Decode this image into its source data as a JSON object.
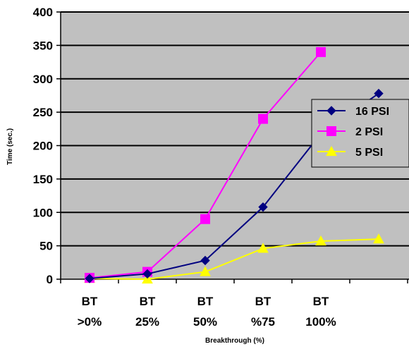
{
  "chart_data": {
    "type": "line",
    "title": "",
    "xlabel": "Breakthrough (%)",
    "ylabel": "Time (sec.)",
    "ylim": [
      0,
      400
    ],
    "yticks": [
      0,
      50,
      100,
      150,
      200,
      250,
      300,
      350,
      400
    ],
    "grid": "horizontal",
    "legend_position": "right",
    "categories": [
      [
        "BT",
        ">0%"
      ],
      [
        "BT",
        "25%"
      ],
      [
        "BT",
        "50%"
      ],
      [
        "BT",
        "%75"
      ],
      [
        "BT",
        "100%"
      ],
      [
        "",
        ""
      ]
    ],
    "series": [
      {
        "name": "16 PSI",
        "color": "#000080",
        "marker": "diamond",
        "values": [
          1,
          8,
          28,
          108,
          218,
          278
        ]
      },
      {
        "name": "2 PSI",
        "color": "#FF00FF",
        "marker": "square",
        "values": [
          2,
          11,
          90,
          240,
          340,
          null
        ]
      },
      {
        "name": "5 PSI",
        "color": "#FFFF00",
        "marker": "triangle",
        "values": [
          1,
          0,
          11,
          46,
          57,
          60
        ]
      }
    ],
    "plot_background": "#C0C0C0"
  }
}
